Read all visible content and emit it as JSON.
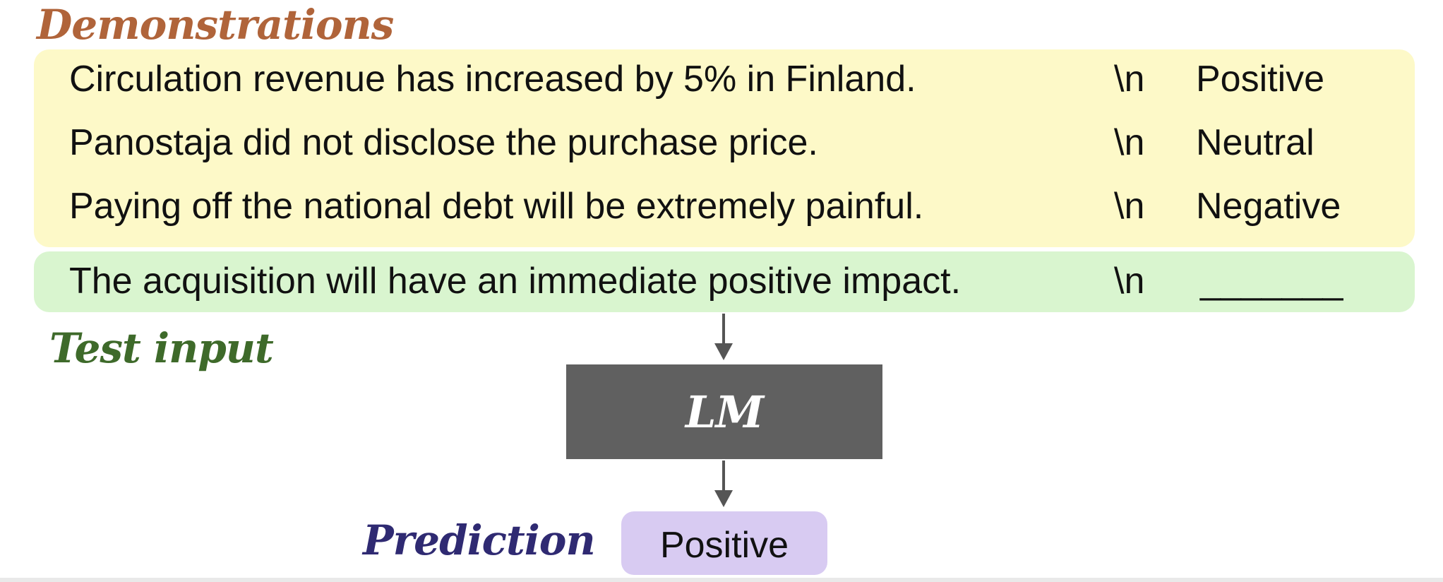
{
  "demonstrations": {
    "title": "Demonstrations",
    "rows": [
      {
        "sentence": "Circulation revenue has increased by 5% in Finland.",
        "separator": "\\n",
        "label": "Positive"
      },
      {
        "sentence": "Panostaja did not disclose the purchase price.",
        "separator": "\\n",
        "label": "Neutral"
      },
      {
        "sentence": "Paying off the national debt will be extremely painful.",
        "separator": "\\n",
        "label": "Negative"
      }
    ]
  },
  "test_input": {
    "title": "Test input",
    "sentence": "The acquisition will have an immediate positive impact.",
    "separator": "\\n",
    "blank": "_______"
  },
  "model": {
    "label": "LM"
  },
  "prediction": {
    "title": "Prediction",
    "value": "Positive"
  },
  "colors": {
    "demonstrations_title": "#b0643a",
    "test_input_title": "#3e6a2a",
    "prediction_title": "#2f2a72",
    "demonstrations_panel": "#fdf9c8",
    "test_input_panel": "#d9f5cf",
    "model_box": "#606060",
    "prediction_box": "#d8cbf2",
    "arrow": "#555555"
  }
}
